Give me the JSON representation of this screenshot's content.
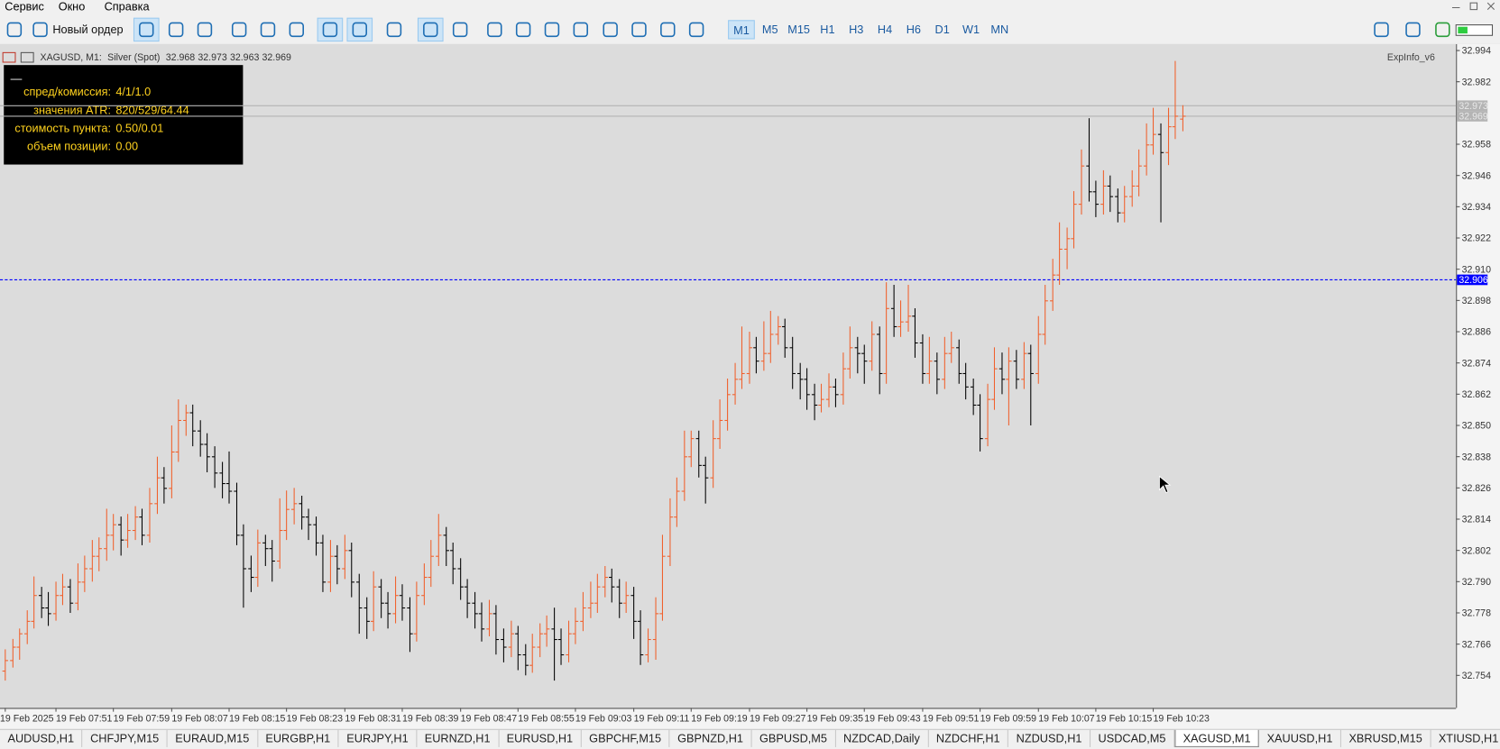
{
  "menu": [
    "Сервис",
    "Окно",
    "Справка"
  ],
  "toolbar": {
    "new_order": "Новый ордер",
    "timeframes": [
      "M1",
      "M5",
      "M15",
      "H1",
      "H3",
      "H4",
      "H6",
      "D1",
      "W1",
      "MN"
    ],
    "active_timeframe": 0
  },
  "chart_header": {
    "symbol": "XAGUSD, M1:",
    "description": "Silver (Spot)",
    "ohlc": [
      32.968,
      32.973,
      32.963,
      32.969
    ]
  },
  "indicator_name": "ExpInfo_v6",
  "info_panel": {
    "toggle": "—",
    "rows": [
      {
        "label": "спред/комиссия:",
        "value": "4/1/1.0"
      },
      {
        "label": "значения ATR:",
        "value": "820/529/64.44"
      },
      {
        "label": "стоимость пункта:",
        "value": "0.50/0.01"
      },
      {
        "label": "объем позиции:",
        "value": "0.00"
      }
    ]
  },
  "tabs": [
    "AUDUSD,H1",
    "CHFJPY,M15",
    "EURAUD,M15",
    "EURGBP,H1",
    "EURJPY,H1",
    "EURNZD,H1",
    "EURUSD,H1",
    "GBPCHF,M15",
    "GBPNZD,H1",
    "GBPUSD,M5",
    "NZDCAD,Daily",
    "NZDCHF,H1",
    "NZDUSD,H1",
    "USDCAD,M5",
    "XAGUSD,M1",
    "XAUUSD,H1",
    "XBRUSD,M15",
    "XTIUSD,H1"
  ],
  "active_tab": 14,
  "chart_data": {
    "type": "ohlc",
    "up_color": "#f0602c",
    "down_color": "#000000",
    "ylim": [
      32.7415,
      32.9965
    ],
    "yticks": [
      32.994,
      32.982,
      32.958,
      32.946,
      32.934,
      32.922,
      {
        "value": 32.91,
        "label": "32.910"
      },
      32.898,
      32.886,
      32.874,
      32.862,
      {
        "value": 32.85,
        "label": "32.850"
      },
      32.838,
      32.826,
      32.814,
      32.802,
      {
        "value": 32.79,
        "label": "32.790"
      },
      32.778,
      32.766,
      32.754
    ],
    "xticks": [
      {
        "value": 0,
        "label": "19 Feb 2025"
      },
      {
        "value": 7,
        "label": "19 Feb 07:51"
      },
      {
        "value": 15,
        "label": "19 Feb 07:59"
      },
      {
        "value": 23,
        "label": "19 Feb 08:07"
      },
      {
        "value": 31,
        "label": "19 Feb 08:15"
      },
      {
        "value": 39,
        "label": "19 Feb 08:23"
      },
      {
        "value": 47,
        "label": "19 Feb 08:31"
      },
      {
        "value": 55,
        "label": "19 Feb 08:39"
      },
      {
        "value": 63,
        "label": "19 Feb 08:47"
      },
      {
        "value": 71,
        "label": "19 Feb 08:55"
      },
      {
        "value": 79,
        "label": "19 Feb 09:03"
      },
      {
        "value": 87,
        "label": "19 Feb 09:11"
      },
      {
        "value": 95,
        "label": "19 Feb 09:19"
      },
      {
        "value": 103,
        "label": "19 Feb 09:27"
      },
      {
        "value": 111,
        "label": "19 Feb 09:35"
      },
      {
        "value": 119,
        "label": "19 Feb 09:43"
      },
      {
        "value": 127,
        "label": "19 Feb 09:51"
      },
      {
        "value": 135,
        "label": "19 Feb 09:59"
      },
      {
        "value": 143,
        "label": "19 Feb 10:07"
      },
      {
        "value": 151,
        "label": "19 Feb 10:15"
      },
      {
        "value": 159,
        "label": "19 Feb 10:23"
      }
    ],
    "price_lines": [
      {
        "value": 32.973,
        "color": "#b4b4b4",
        "dashed": false
      },
      {
        "value": 32.969,
        "color": "#b4b4b4",
        "dashed": false
      },
      {
        "value": 32.906,
        "color": "#0000ff",
        "dashed": true
      }
    ],
    "ohlc": [
      [
        32.756,
        32.764,
        32.752,
        32.76
      ],
      [
        32.76,
        32.768,
        32.757,
        32.765
      ],
      [
        32.765,
        32.772,
        32.76,
        32.77
      ],
      [
        32.77,
        32.779,
        32.766,
        32.775
      ],
      [
        32.775,
        32.792,
        32.772,
        32.785
      ],
      [
        32.785,
        32.788,
        32.776,
        32.78
      ],
      [
        32.78,
        32.786,
        32.773,
        32.778
      ],
      [
        32.778,
        32.79,
        32.775,
        32.785
      ],
      [
        32.785,
        32.793,
        32.781,
        32.788
      ],
      [
        32.788,
        32.791,
        32.778,
        32.782
      ],
      [
        32.782,
        32.797,
        32.779,
        32.79
      ],
      [
        32.79,
        32.8,
        32.786,
        32.795
      ],
      [
        32.795,
        32.806,
        32.79,
        32.8
      ],
      [
        32.8,
        32.807,
        32.794,
        32.803
      ],
      [
        32.803,
        32.818,
        32.798,
        32.808
      ],
      [
        32.808,
        32.816,
        32.802,
        32.812
      ],
      [
        32.812,
        32.815,
        32.8,
        32.806
      ],
      [
        32.806,
        32.816,
        32.803,
        32.81
      ],
      [
        32.81,
        32.819,
        32.806,
        32.815
      ],
      [
        32.815,
        32.818,
        32.804,
        32.808
      ],
      [
        32.808,
        32.826,
        32.805,
        32.82
      ],
      [
        32.82,
        32.838,
        32.816,
        32.83
      ],
      [
        32.83,
        32.834,
        32.82,
        32.826
      ],
      [
        32.826,
        32.85,
        32.822,
        32.84
      ],
      [
        32.84,
        32.86,
        32.836,
        32.852
      ],
      [
        32.852,
        32.858,
        32.846,
        32.855
      ],
      [
        32.855,
        32.858,
        32.842,
        32.848
      ],
      [
        32.848,
        32.852,
        32.838,
        32.843
      ],
      [
        32.843,
        32.847,
        32.832,
        32.838
      ],
      [
        32.838,
        32.842,
        32.826,
        32.832
      ],
      [
        32.832,
        32.836,
        32.822,
        32.828
      ],
      [
        32.828,
        32.84,
        32.82,
        32.825
      ],
      [
        32.825,
        32.828,
        32.804,
        32.808
      ],
      [
        32.808,
        32.812,
        32.78,
        32.795
      ],
      [
        32.795,
        32.8,
        32.786,
        32.792
      ],
      [
        32.792,
        32.81,
        32.788,
        32.805
      ],
      [
        32.805,
        32.808,
        32.796,
        32.803
      ],
      [
        32.803,
        32.806,
        32.79,
        32.798
      ],
      [
        32.798,
        32.822,
        32.795,
        32.81
      ],
      [
        32.81,
        32.825,
        32.806,
        32.818
      ],
      [
        32.818,
        32.826,
        32.812,
        32.82
      ],
      [
        32.82,
        32.823,
        32.81,
        32.815
      ],
      [
        32.815,
        32.818,
        32.806,
        32.812
      ],
      [
        32.812,
        32.815,
        32.8,
        32.805
      ],
      [
        32.805,
        32.808,
        32.786,
        32.79
      ],
      [
        32.79,
        32.806,
        32.786,
        32.8
      ],
      [
        32.8,
        32.804,
        32.789,
        32.795
      ],
      [
        32.795,
        32.808,
        32.791,
        32.802
      ],
      [
        32.802,
        32.805,
        32.784,
        32.79
      ],
      [
        32.79,
        32.793,
        32.77,
        32.78
      ],
      [
        32.78,
        32.784,
        32.768,
        32.775
      ],
      [
        32.775,
        32.794,
        32.771,
        32.788
      ],
      [
        32.788,
        32.791,
        32.776,
        32.782
      ],
      [
        32.782,
        32.786,
        32.772,
        32.778
      ],
      [
        32.778,
        32.792,
        32.774,
        32.785
      ],
      [
        32.785,
        32.789,
        32.775,
        32.78
      ],
      [
        32.78,
        32.784,
        32.763,
        32.77
      ],
      [
        32.77,
        32.79,
        32.767,
        32.785
      ],
      [
        32.785,
        32.797,
        32.781,
        32.792
      ],
      [
        32.792,
        32.806,
        32.788,
        32.8
      ],
      [
        32.8,
        32.816,
        32.796,
        32.808
      ],
      [
        32.808,
        32.811,
        32.796,
        32.802
      ],
      [
        32.802,
        32.805,
        32.789,
        32.795
      ],
      [
        32.795,
        32.799,
        32.783,
        32.788
      ],
      [
        32.788,
        32.791,
        32.776,
        32.782
      ],
      [
        32.782,
        32.786,
        32.772,
        32.778
      ],
      [
        32.778,
        32.782,
        32.767,
        32.772
      ],
      [
        32.772,
        32.783,
        32.769,
        32.778
      ],
      [
        32.778,
        32.781,
        32.762,
        32.768
      ],
      [
        32.768,
        32.772,
        32.759,
        32.765
      ],
      [
        32.765,
        32.775,
        32.761,
        32.77
      ],
      [
        32.77,
        32.773,
        32.756,
        32.762
      ],
      [
        32.762,
        32.766,
        32.754,
        32.758
      ],
      [
        32.758,
        32.77,
        32.755,
        32.765
      ],
      [
        32.765,
        32.774,
        32.761,
        32.77
      ],
      [
        32.77,
        32.777,
        32.765,
        32.772
      ],
      [
        32.772,
        32.78,
        32.752,
        32.768
      ],
      [
        32.768,
        32.772,
        32.758,
        32.762
      ],
      [
        32.762,
        32.775,
        32.759,
        32.77
      ],
      [
        32.77,
        32.78,
        32.766,
        32.775
      ],
      [
        32.775,
        32.786,
        32.771,
        32.78
      ],
      [
        32.78,
        32.79,
        32.776,
        32.782
      ],
      [
        32.782,
        32.793,
        32.778,
        32.788
      ],
      [
        32.788,
        32.796,
        32.784,
        32.792
      ],
      [
        32.792,
        32.795,
        32.782,
        32.788
      ],
      [
        32.788,
        32.791,
        32.776,
        32.782
      ],
      [
        32.782,
        32.79,
        32.778,
        32.785
      ],
      [
        32.785,
        32.788,
        32.768,
        32.775
      ],
      [
        32.775,
        32.779,
        32.758,
        32.762
      ],
      [
        32.762,
        32.772,
        32.759,
        32.768
      ],
      [
        32.768,
        32.784,
        32.76,
        32.778
      ],
      [
        32.778,
        32.808,
        32.775,
        32.8
      ],
      [
        32.8,
        32.822,
        32.796,
        32.815
      ],
      [
        32.815,
        32.83,
        32.811,
        32.825
      ],
      [
        32.825,
        32.848,
        32.821,
        32.838
      ],
      [
        32.838,
        32.848,
        32.834,
        32.845
      ],
      [
        32.845,
        32.848,
        32.83,
        32.835
      ],
      [
        32.835,
        32.838,
        32.82,
        32.83
      ],
      [
        32.83,
        32.852,
        32.826,
        32.845
      ],
      [
        32.845,
        32.86,
        32.841,
        32.852
      ],
      [
        32.852,
        32.868,
        32.848,
        32.862
      ],
      [
        32.862,
        32.874,
        32.858,
        32.868
      ],
      [
        32.868,
        32.888,
        32.864,
        32.87
      ],
      [
        32.87,
        32.886,
        32.866,
        32.88
      ],
      [
        32.88,
        32.884,
        32.87,
        32.875
      ],
      [
        32.875,
        32.89,
        32.871,
        32.878
      ],
      [
        32.878,
        32.894,
        32.874,
        32.885
      ],
      [
        32.885,
        32.892,
        32.881,
        32.888
      ],
      [
        32.888,
        32.891,
        32.876,
        32.88
      ],
      [
        32.88,
        32.884,
        32.864,
        32.87
      ],
      [
        32.87,
        32.874,
        32.86,
        32.868
      ],
      [
        32.868,
        32.872,
        32.856,
        32.862
      ],
      [
        32.862,
        32.866,
        32.852,
        32.858
      ],
      [
        32.858,
        32.866,
        32.855,
        32.86
      ],
      [
        32.86,
        32.87,
        32.857,
        32.865
      ],
      [
        32.865,
        32.868,
        32.857,
        32.862
      ],
      [
        32.862,
        32.878,
        32.858,
        32.872
      ],
      [
        32.872,
        32.888,
        32.868,
        32.88
      ],
      [
        32.88,
        32.884,
        32.87,
        32.878
      ],
      [
        32.878,
        32.881,
        32.866,
        32.875
      ],
      [
        32.875,
        32.89,
        32.871,
        32.885
      ],
      [
        32.885,
        32.888,
        32.862,
        32.87
      ],
      [
        32.87,
        32.905,
        32.866,
        32.895
      ],
      [
        32.895,
        32.904,
        32.884,
        32.888
      ],
      [
        32.888,
        32.898,
        32.884,
        32.89
      ],
      [
        32.89,
        32.904,
        32.886,
        32.892
      ],
      [
        32.892,
        32.895,
        32.876,
        32.882
      ],
      [
        32.882,
        32.885,
        32.866,
        32.87
      ],
      [
        32.87,
        32.884,
        32.866,
        32.875
      ],
      [
        32.875,
        32.878,
        32.862,
        32.868
      ],
      [
        32.868,
        32.884,
        32.864,
        32.878
      ],
      [
        32.878,
        32.886,
        32.874,
        32.88
      ],
      [
        32.88,
        32.883,
        32.866,
        32.87
      ],
      [
        32.87,
        32.874,
        32.86,
        32.865
      ],
      [
        32.865,
        32.868,
        32.854,
        32.858
      ],
      [
        32.858,
        32.862,
        32.84,
        32.845
      ],
      [
        32.845,
        32.866,
        32.842,
        32.86
      ],
      [
        32.86,
        32.88,
        32.856,
        32.872
      ],
      [
        32.872,
        32.878,
        32.862,
        32.868
      ],
      [
        32.868,
        32.88,
        32.85,
        32.875
      ],
      [
        32.875,
        32.879,
        32.864,
        32.868
      ],
      [
        32.868,
        32.882,
        32.864,
        32.878
      ],
      [
        32.878,
        32.881,
        32.85,
        32.87
      ],
      [
        32.87,
        32.892,
        32.866,
        32.885
      ],
      [
        32.885,
        32.904,
        32.881,
        32.898
      ],
      [
        32.898,
        32.914,
        32.894,
        32.908
      ],
      [
        32.908,
        32.928,
        32.904,
        32.918
      ],
      [
        32.918,
        32.926,
        32.91,
        32.922
      ],
      [
        32.922,
        32.94,
        32.918,
        32.935
      ],
      [
        32.935,
        32.956,
        32.931,
        32.95
      ],
      [
        32.95,
        32.968,
        32.936,
        32.94
      ],
      [
        32.94,
        32.944,
        32.93,
        32.935
      ],
      [
        32.935,
        32.948,
        32.931,
        32.942
      ],
      [
        32.942,
        32.946,
        32.932,
        32.938
      ],
      [
        32.938,
        32.941,
        32.928,
        32.932
      ],
      [
        32.932,
        32.942,
        32.928,
        32.938
      ],
      [
        32.938,
        32.948,
        32.934,
        32.942
      ],
      [
        32.942,
        32.956,
        32.938,
        32.95
      ],
      [
        32.95,
        32.966,
        32.946,
        32.958
      ],
      [
        32.958,
        32.972,
        32.954,
        32.962
      ],
      [
        32.962,
        32.966,
        32.928,
        32.955
      ],
      [
        32.955,
        32.972,
        32.95,
        32.965
      ],
      [
        32.965,
        32.99,
        32.96,
        32.969
      ],
      [
        32.968,
        32.973,
        32.963,
        32.969
      ]
    ]
  }
}
